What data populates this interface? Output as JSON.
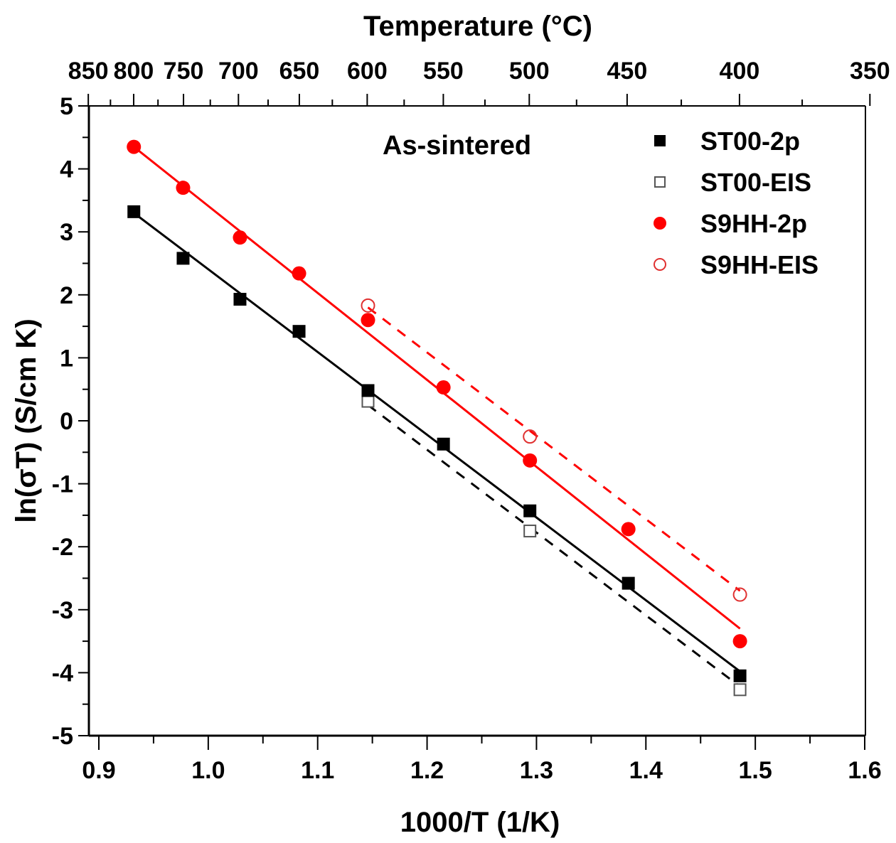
{
  "chart_data": {
    "type": "scatter",
    "title": "",
    "annotation": "As-sintered",
    "xlabel": "1000/T (1/K)",
    "ylabel": "ln(σT) (S/cm K)",
    "top_xlabel": "Temperature (°C)",
    "xlim": [
      0.9,
      1.6
    ],
    "ylim": [
      -5,
      5
    ],
    "x_ticks": [
      0.9,
      1.0,
      1.1,
      1.2,
      1.3,
      1.4,
      1.5,
      1.6
    ],
    "x_tick_labels": [
      "0.9",
      "1.0",
      "1.1",
      "1.2",
      "1.3",
      "1.4",
      "1.5",
      "1.6"
    ],
    "y_ticks": [
      5,
      4,
      3,
      2,
      1,
      0,
      -1,
      -2,
      -3,
      -4,
      -5
    ],
    "y_tick_labels": [
      "5",
      "4",
      "3",
      "2",
      "1",
      "0",
      "-1",
      "-2",
      "-3",
      "-4",
      "-5"
    ],
    "top_ticks_celsius": [
      850,
      800,
      750,
      700,
      650,
      600,
      550,
      500,
      450,
      400,
      350
    ],
    "top_tick_labels": [
      "850",
      "800",
      "750",
      "700",
      "650",
      "600",
      "550",
      "500",
      "450",
      "400",
      "350"
    ],
    "grid": false,
    "legend_position": "top-right",
    "series": [
      {
        "name": "ST00-2p",
        "marker": "square-filled",
        "color": "#000000",
        "x": [
          0.932,
          0.977,
          1.029,
          1.083,
          1.146,
          1.215,
          1.294,
          1.384,
          1.486
        ],
        "y": [
          3.32,
          2.58,
          1.93,
          1.42,
          0.48,
          -0.37,
          -1.43,
          -2.58,
          -4.05
        ],
        "fit": {
          "style": "solid",
          "x": [
            0.932,
            1.486
          ],
          "y": [
            3.3,
            -3.98
          ]
        }
      },
      {
        "name": "ST00-EIS",
        "marker": "square-open",
        "color": "#000000",
        "x": [
          1.146,
          1.294,
          1.486
        ],
        "y": [
          0.31,
          -1.75,
          -4.27
        ],
        "fit": {
          "style": "dashed",
          "x": [
            1.146,
            1.486
          ],
          "y": [
            0.25,
            -4.22
          ]
        }
      },
      {
        "name": "S9HH-2p",
        "marker": "circle-filled",
        "color": "#ff0000",
        "x": [
          0.932,
          0.977,
          1.029,
          1.083,
          1.146,
          1.215,
          1.294,
          1.384,
          1.486
        ],
        "y": [
          4.35,
          3.7,
          2.91,
          2.34,
          1.6,
          0.53,
          -0.63,
          -1.72,
          -3.5
        ],
        "fit": {
          "style": "solid",
          "x": [
            0.932,
            1.486
          ],
          "y": [
            4.35,
            -3.3
          ]
        }
      },
      {
        "name": "S9HH-EIS",
        "marker": "circle-open",
        "color": "#ff0000",
        "x": [
          1.146,
          1.294,
          1.486
        ],
        "y": [
          1.83,
          -0.25,
          -2.76
        ],
        "fit": {
          "style": "dashed",
          "x": [
            1.146,
            1.486
          ],
          "y": [
            1.8,
            -2.7
          ]
        }
      }
    ]
  }
}
